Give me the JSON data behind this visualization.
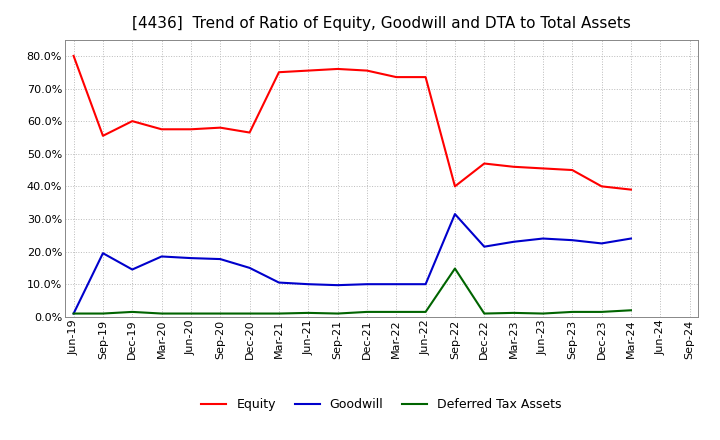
{
  "title": "[4436]  Trend of Ratio of Equity, Goodwill and DTA to Total Assets",
  "x_labels": [
    "Jun-19",
    "Sep-19",
    "Dec-19",
    "Mar-20",
    "Jun-20",
    "Sep-20",
    "Dec-20",
    "Mar-21",
    "Jun-21",
    "Sep-21",
    "Dec-21",
    "Mar-22",
    "Jun-22",
    "Sep-22",
    "Dec-22",
    "Mar-23",
    "Jun-23",
    "Sep-23",
    "Dec-23",
    "Mar-24",
    "Jun-24",
    "Sep-24"
  ],
  "equity": [
    0.8,
    0.555,
    0.6,
    0.575,
    0.575,
    0.58,
    0.565,
    0.75,
    0.755,
    0.76,
    0.755,
    0.735,
    0.735,
    0.4,
    0.47,
    0.46,
    0.455,
    0.45,
    0.4,
    0.39,
    null,
    null
  ],
  "goodwill": [
    0.01,
    0.195,
    0.145,
    0.185,
    0.18,
    0.177,
    0.15,
    0.105,
    0.1,
    0.097,
    0.1,
    0.1,
    0.1,
    0.315,
    0.215,
    0.23,
    0.24,
    0.235,
    0.225,
    0.24,
    null,
    null
  ],
  "dta": [
    0.01,
    0.01,
    0.015,
    0.01,
    0.01,
    0.01,
    0.01,
    0.01,
    0.012,
    0.01,
    0.015,
    0.015,
    0.015,
    0.148,
    0.01,
    0.012,
    0.01,
    0.015,
    0.015,
    0.02,
    null,
    null
  ],
  "equity_color": "#ff0000",
  "goodwill_color": "#0000cc",
  "dta_color": "#006400",
  "ylim": [
    0.0,
    0.85
  ],
  "yticks": [
    0.0,
    0.1,
    0.2,
    0.3,
    0.4,
    0.5,
    0.6,
    0.7,
    0.8
  ],
  "background_color": "#ffffff",
  "grid_color": "#bbbbbb",
  "title_fontsize": 11,
  "axis_fontsize": 8,
  "legend_fontsize": 9
}
